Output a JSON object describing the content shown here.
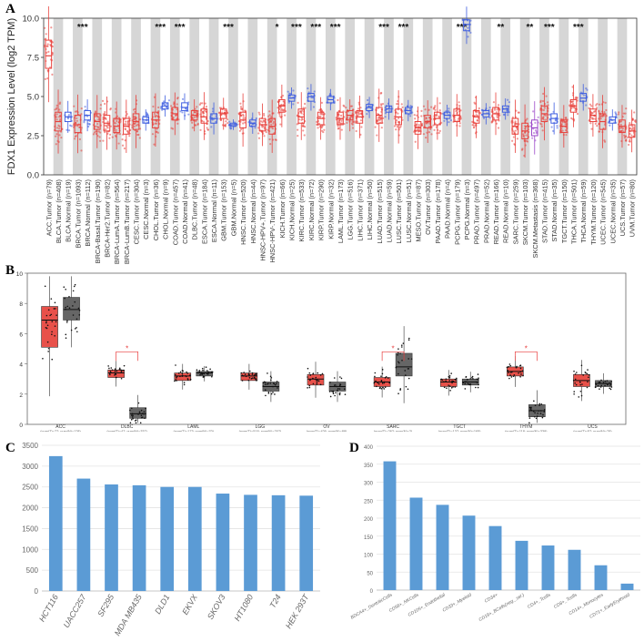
{
  "panels": {
    "a": "A",
    "b": "B",
    "c": "C",
    "d": "D"
  },
  "chart_data": [
    {
      "panel": "A",
      "type": "box",
      "title": "",
      "ylabel": "FDX1 Expression Level (log2 TPM)",
      "xlabel": "",
      "ylim": [
        0,
        10
      ],
      "yticks": [
        "0.0",
        "2.5",
        "5.0",
        "7.5",
        "10.0"
      ],
      "colors": {
        "tumor": "#e8413c",
        "normal": "#3f5ee0",
        "other": "#9a45c8"
      },
      "categories": [
        {
          "label": "ACC.Tumor (n=79)",
          "kind": "tumor",
          "median": 7.6,
          "q1": 6.8,
          "q3": 8.6
        },
        {
          "label": "BLCA.Tumor (n=408)",
          "kind": "tumor",
          "median": 3.4,
          "q1": 2.8,
          "q3": 4.0
        },
        {
          "label": "BLCA.Normal (n=19)",
          "kind": "normal",
          "median": 3.7,
          "q1": 3.4,
          "q3": 4.0
        },
        {
          "label": "BRCA.Tumor (n=1093)",
          "kind": "tumor",
          "median": 3.2,
          "q1": 2.7,
          "q3": 3.8,
          "sig": "***"
        },
        {
          "label": "BRCA.Normal (n=112)",
          "kind": "normal",
          "median": 3.8,
          "q1": 3.5,
          "q3": 4.1
        },
        {
          "label": "BRCA-Basal.Tumor (n=190)",
          "kind": "tumor",
          "median": 3.4,
          "q1": 2.9,
          "q3": 3.9
        },
        {
          "label": "BRCA-Her2.Tumor (n=82)",
          "kind": "tumor",
          "median": 3.3,
          "q1": 2.8,
          "q3": 3.8
        },
        {
          "label": "BRCA-LumA.Tumor (n=564)",
          "kind": "tumor",
          "median": 3.1,
          "q1": 2.7,
          "q3": 3.6
        },
        {
          "label": "BRCA-LumB.Tumor (n=217)",
          "kind": "tumor",
          "median": 3.1,
          "q1": 2.6,
          "q3": 3.6
        },
        {
          "label": "CESC.Tumor (n=304)",
          "kind": "tumor",
          "median": 3.4,
          "q1": 2.9,
          "q3": 3.9
        },
        {
          "label": "CESC.Normal (n=3)",
          "kind": "normal",
          "median": 3.5,
          "q1": 3.3,
          "q3": 3.7
        },
        {
          "label": "CHOL.Tumor (n=36)",
          "kind": "tumor",
          "median": 3.5,
          "q1": 3.0,
          "q3": 4.0,
          "sig": "***"
        },
        {
          "label": "CHOL.Normal (n=9)",
          "kind": "normal",
          "median": 4.4,
          "q1": 4.2,
          "q3": 4.6
        },
        {
          "label": "COAD.Tumor (n=457)",
          "kind": "tumor",
          "median": 3.9,
          "q1": 3.5,
          "q3": 4.3,
          "sig": "***"
        },
        {
          "label": "COAD.Normal (n=41)",
          "kind": "normal",
          "median": 4.3,
          "q1": 4.1,
          "q3": 4.6
        },
        {
          "label": "DLBC.Tumor (n=48)",
          "kind": "tumor",
          "median": 3.8,
          "q1": 3.5,
          "q3": 4.1
        },
        {
          "label": "ESCA.Tumor (n=184)",
          "kind": "tumor",
          "median": 3.7,
          "q1": 3.3,
          "q3": 4.2
        },
        {
          "label": "ESCA.Normal (n=11)",
          "kind": "normal",
          "median": 3.6,
          "q1": 3.3,
          "q3": 3.9
        },
        {
          "label": "GBM.Tumor (n=153)",
          "kind": "tumor",
          "median": 3.9,
          "q1": 3.6,
          "q3": 4.2,
          "sig": "***"
        },
        {
          "label": "GBM.Normal (n=5)",
          "kind": "normal",
          "median": 3.2,
          "q1": 3.1,
          "q3": 3.3
        },
        {
          "label": "HNSC.Tumor (n=520)",
          "kind": "tumor",
          "median": 3.5,
          "q1": 3.0,
          "q3": 4.0
        },
        {
          "label": "HNSC.Normal (n=44)",
          "kind": "normal",
          "median": 3.3,
          "q1": 3.1,
          "q3": 3.5
        },
        {
          "label": "HNSC-HPV+.Tumor (n=97)",
          "kind": "tumor",
          "median": 3.2,
          "q1": 2.8,
          "q3": 3.6
        },
        {
          "label": "HNSC-HPV-.Tumor (n=421)",
          "kind": "tumor",
          "median": 3.1,
          "q1": 2.6,
          "q3": 3.6,
          "sig": "*"
        },
        {
          "label": "KICH.Tumor (n=66)",
          "kind": "tumor",
          "median": 4.4,
          "q1": 4.0,
          "q3": 4.8
        },
        {
          "label": "KICH.Normal (n=25)",
          "kind": "normal",
          "median": 4.9,
          "q1": 4.7,
          "q3": 5.1,
          "sig": "***"
        },
        {
          "label": "KIRC.Tumor (n=533)",
          "kind": "tumor",
          "median": 3.7,
          "q1": 3.3,
          "q3": 4.2
        },
        {
          "label": "KIRC.Normal (n=72)",
          "kind": "normal",
          "median": 5.0,
          "q1": 4.7,
          "q3": 5.2,
          "sig": "***"
        },
        {
          "label": "KIRP.Tumor (n=290)",
          "kind": "tumor",
          "median": 3.6,
          "q1": 3.2,
          "q3": 4.0
        },
        {
          "label": "KIRP.Normal (n=32)",
          "kind": "normal",
          "median": 4.8,
          "q1": 4.6,
          "q3": 5.0,
          "sig": "***"
        },
        {
          "label": "LAML.Tumor (n=173)",
          "kind": "tumor",
          "median": 3.6,
          "q1": 3.2,
          "q3": 4.0
        },
        {
          "label": "LGG.Tumor (n=516)",
          "kind": "tumor",
          "median": 3.8,
          "q1": 3.5,
          "q3": 4.1
        },
        {
          "label": "LIHC.Tumor (n=371)",
          "kind": "tumor",
          "median": 3.7,
          "q1": 3.3,
          "q3": 4.1
        },
        {
          "label": "LIHC.Normal (n=50)",
          "kind": "normal",
          "median": 4.3,
          "q1": 4.1,
          "q3": 4.5
        },
        {
          "label": "LUAD.Tumor (n=515)",
          "kind": "tumor",
          "median": 3.8,
          "q1": 3.3,
          "q3": 4.3,
          "sig": "***"
        },
        {
          "label": "LUAD.Normal (n=59)",
          "kind": "normal",
          "median": 4.2,
          "q1": 4.0,
          "q3": 4.4
        },
        {
          "label": "LUSC.Tumor (n=501)",
          "kind": "tumor",
          "median": 3.7,
          "q1": 3.2,
          "q3": 4.2,
          "sig": "***"
        },
        {
          "label": "LUSC.Normal (n=51)",
          "kind": "normal",
          "median": 4.1,
          "q1": 3.9,
          "q3": 4.3
        },
        {
          "label": "MESO.Tumor (n=87)",
          "kind": "tumor",
          "median": 3.0,
          "q1": 2.6,
          "q3": 3.4
        },
        {
          "label": "OV.Tumor (n=303)",
          "kind": "tumor",
          "median": 3.4,
          "q1": 3.0,
          "q3": 3.8
        },
        {
          "label": "PAAD.Tumor (n=178)",
          "kind": "tumor",
          "median": 3.6,
          "q1": 3.2,
          "q3": 4.0
        },
        {
          "label": "PAAD.Normal (n=4)",
          "kind": "normal",
          "median": 3.8,
          "q1": 3.6,
          "q3": 4.0
        },
        {
          "label": "PCPG.Tumor (n=179)",
          "kind": "tumor",
          "median": 3.8,
          "q1": 3.4,
          "q3": 4.2,
          "sig": "***"
        },
        {
          "label": "PCPG.Normal (n=3)",
          "kind": "normal",
          "median": 9.6,
          "q1": 9.2,
          "q3": 9.9
        },
        {
          "label": "PRAD.Tumor (n=497)",
          "kind": "tumor",
          "median": 3.7,
          "q1": 3.3,
          "q3": 4.1
        },
        {
          "label": "PRAD.Normal (n=52)",
          "kind": "normal",
          "median": 3.9,
          "q1": 3.7,
          "q3": 4.1
        },
        {
          "label": "READ.Tumor (n=166)",
          "kind": "tumor",
          "median": 3.9,
          "q1": 3.5,
          "q3": 4.3,
          "sig": "**"
        },
        {
          "label": "READ.Normal (n=10)",
          "kind": "normal",
          "median": 4.2,
          "q1": 4.0,
          "q3": 4.4
        },
        {
          "label": "SARC.Tumor (n=259)",
          "kind": "tumor",
          "median": 3.1,
          "q1": 2.6,
          "q3": 3.6
        },
        {
          "label": "SKCM.Tumor (n=103)",
          "kind": "tumor",
          "median": 2.8,
          "q1": 2.3,
          "q3": 3.3,
          "sig": "**"
        },
        {
          "label": "SKCM.Metastasis (n=368)",
          "kind": "other",
          "median": 3.0,
          "q1": 2.5,
          "q3": 3.5
        },
        {
          "label": "STAD.Tumor (n=415)",
          "kind": "tumor",
          "median": 3.9,
          "q1": 3.4,
          "q3": 4.4,
          "sig": "***"
        },
        {
          "label": "STAD.Normal (n=35)",
          "kind": "normal",
          "median": 3.6,
          "q1": 3.3,
          "q3": 3.9
        },
        {
          "label": "TGCT.Tumor (n=150)",
          "kind": "tumor",
          "median": 3.1,
          "q1": 2.7,
          "q3": 3.5
        },
        {
          "label": "THCA.Tumor (n=501)",
          "kind": "tumor",
          "median": 4.4,
          "q1": 4.0,
          "q3": 4.8,
          "sig": "***"
        },
        {
          "label": "THCA.Normal (n=59)",
          "kind": "normal",
          "median": 4.9,
          "q1": 4.7,
          "q3": 5.2
        },
        {
          "label": "THYM.Tumor (n=120)",
          "kind": "tumor",
          "median": 3.8,
          "q1": 3.4,
          "q3": 4.2
        },
        {
          "label": "UCEC.Tumor (n=545)",
          "kind": "tumor",
          "median": 3.4,
          "q1": 2.9,
          "q3": 3.9
        },
        {
          "label": "UCEC.Normal (n=35)",
          "kind": "normal",
          "median": 3.5,
          "q1": 3.3,
          "q3": 3.7
        },
        {
          "label": "UCS.Tumor (n=57)",
          "kind": "tumor",
          "median": 3.1,
          "q1": 2.7,
          "q3": 3.5
        },
        {
          "label": "UVM.Tumor (n=80)",
          "kind": "tumor",
          "median": 2.8,
          "q1": 2.4,
          "q3": 3.2
        }
      ]
    },
    {
      "panel": "B",
      "type": "box",
      "title": "",
      "ylim": [
        0,
        10
      ],
      "yticks": [
        "0",
        "2",
        "4",
        "6",
        "8",
        "10"
      ],
      "colors": {
        "tumor": "#e8514a",
        "normal": "#666666"
      },
      "groups": [
        {
          "label": "ACC",
          "sublabel": "(num(T)=77; num(N)=128)",
          "tumor": {
            "median": 6.9,
            "q1": 5.1,
            "q3": 7.8
          },
          "normal": {
            "median": 7.6,
            "q1": 6.9,
            "q3": 8.4
          }
        },
        {
          "label": "DLBC",
          "sublabel": "(num(T)=47; num(N)=337)",
          "tumor": {
            "median": 3.4,
            "q1": 3.1,
            "q3": 3.6
          },
          "normal": {
            "median": 0.7,
            "q1": 0.4,
            "q3": 1.1
          },
          "sig": "*"
        },
        {
          "label": "LAML",
          "sublabel": "(num(T)=173; num(N)=70)",
          "tumor": {
            "median": 3.2,
            "q1": 2.9,
            "q3": 3.4
          },
          "normal": {
            "median": 3.4,
            "q1": 3.2,
            "q3": 3.5
          }
        },
        {
          "label": "LGG",
          "sublabel": "(num(T)=518; num(N)=207)",
          "tumor": {
            "median": 3.2,
            "q1": 2.9,
            "q3": 3.4
          },
          "normal": {
            "median": 2.5,
            "q1": 2.2,
            "q3": 2.8
          }
        },
        {
          "label": "OV",
          "sublabel": "(num(T)=426; num(N)=88)",
          "tumor": {
            "median": 3.0,
            "q1": 2.6,
            "q3": 3.3
          },
          "normal": {
            "median": 2.5,
            "q1": 2.2,
            "q3": 2.8
          }
        },
        {
          "label": "SARC",
          "sublabel": "(num(T)=262; num(N)=2)",
          "tumor": {
            "median": 2.8,
            "q1": 2.5,
            "q3": 3.1
          },
          "normal": {
            "median": 3.8,
            "q1": 3.2,
            "q3": 4.7
          },
          "sig": "*"
        },
        {
          "label": "TGCT",
          "sublabel": "(num(T)=137; num(N)=165)",
          "tumor": {
            "median": 2.8,
            "q1": 2.5,
            "q3": 3.0
          },
          "normal": {
            "median": 2.8,
            "q1": 2.6,
            "q3": 3.0
          }
        },
        {
          "label": "THYM",
          "sublabel": "(num(T)=118; num(N)=339)",
          "tumor": {
            "median": 3.5,
            "q1": 3.2,
            "q3": 3.8
          },
          "normal": {
            "median": 0.9,
            "q1": 0.5,
            "q3": 1.3
          },
          "sig": "*"
        },
        {
          "label": "UCS",
          "sublabel": "(num(T)=57; num(N)=78)",
          "tumor": {
            "median": 2.9,
            "q1": 2.5,
            "q3": 3.3
          },
          "normal": {
            "median": 2.7,
            "q1": 2.5,
            "q3": 2.9
          }
        }
      ]
    },
    {
      "panel": "C",
      "type": "bar",
      "title": "",
      "categories": [
        "HCT116",
        "UACC257",
        "SF295",
        "MDA MB435",
        "DLD1",
        "EKVX",
        "SKOV3",
        "HT1080",
        "T24",
        "HEK 293T"
      ],
      "values": [
        3240,
        2700,
        2560,
        2540,
        2500,
        2500,
        2340,
        2310,
        2300,
        2290
      ],
      "ylim": [
        0,
        3500
      ],
      "yticks": [
        "0",
        "500",
        "1000",
        "1500",
        "2000",
        "2500",
        "3000",
        "3500"
      ],
      "color": "#5b9bd5"
    },
    {
      "panel": "D",
      "type": "bar",
      "title": "",
      "categories": [
        "BDCA4+_DentriticCells",
        "CD56+_NKCells",
        "CD105+_Endothelial",
        "CD33+_Myeloid",
        "CD34+",
        "CD19+_BCells(neg._sel.)",
        "CD4+_Tcells",
        "CD8+_Tcells",
        "CD14+_Monocytes",
        "CD71+_EarlyErythroid"
      ],
      "values": [
        358,
        257,
        237,
        207,
        178,
        137,
        124,
        112,
        69,
        18
      ],
      "ylim": [
        0,
        400
      ],
      "yticks": [
        "0",
        "50",
        "100",
        "150",
        "200",
        "250",
        "300",
        "350",
        "400"
      ],
      "color": "#5b9bd5"
    }
  ]
}
